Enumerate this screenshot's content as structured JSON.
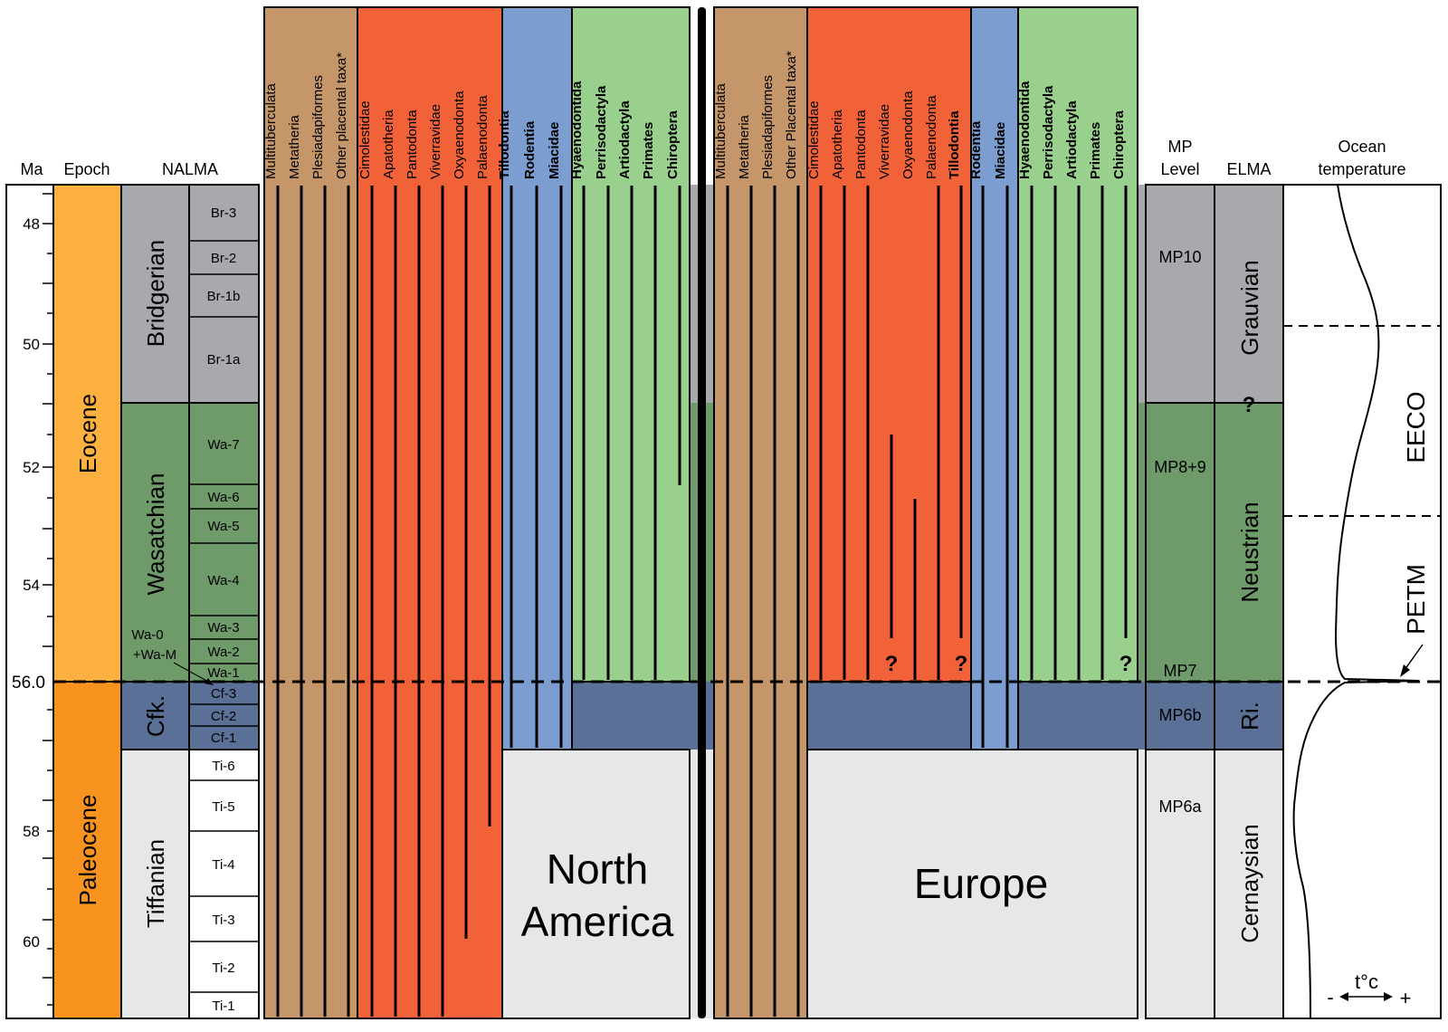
{
  "colors": {
    "paleocene": "#f7931e",
    "eocene": "#fbb040",
    "gray_zone": "#a7a9ac",
    "green_zone": "#6f9a6a",
    "blue_zone": "#5b7096",
    "light_zone": "#e6e7e8",
    "brown_group": "#c4966a",
    "red_group": "#f26239",
    "blue_group": "#7b9dd0",
    "green_group": "#9ad08e"
  },
  "headers": {
    "ma": "Ma",
    "epoch": "Epoch",
    "nalma": "NALMA",
    "mp_level_line1": "MP",
    "mp_level_line2": "Level",
    "elma": "ELMA",
    "ocean_line1": "Ocean",
    "ocean_line2": "temperature"
  },
  "ma_ticks": [
    "48",
    "50",
    "52",
    "54",
    "56.0",
    "58",
    "60"
  ],
  "epochs": [
    "Eocene",
    "Paleocene"
  ],
  "nalma": {
    "stages": [
      "Bridgerian",
      "Wasatchian",
      "Cfk.",
      "Tiffanian"
    ],
    "substages": [
      "Br-3",
      "Br-2",
      "Br-1b",
      "Br-1a",
      "Wa-7",
      "Wa-6",
      "Wa-5",
      "Wa-4",
      "Wa-3",
      "Wa-2",
      "Wa-1",
      "Cf-3",
      "Cf-2",
      "Cf-1",
      "Ti-6",
      "Ti-5",
      "Ti-4",
      "Ti-3",
      "Ti-2",
      "Ti-1"
    ],
    "wa0_line1": "Wa-0",
    "wa0_line2": "+Wa-M"
  },
  "north_america": {
    "label_line1": "North",
    "label_line2": "America",
    "taxa": [
      "Multituberculata",
      "Metatheria",
      "Plesiadapiformes",
      "Other placental taxa*",
      "Cimolestidae",
      "Apatotheria",
      "Pantodonta",
      "Viverravidae",
      "Oxyaenodonta",
      "Palaenodonta",
      "Tillodontia",
      "Rodentia",
      "Miacidae",
      "Hyaenodontida",
      "Perrisodactyla",
      "Artiodactyla",
      "Primates",
      "Chiroptera"
    ]
  },
  "europe": {
    "label": "Europe",
    "taxa": [
      "Multituberculata",
      "Metatheria",
      "Plesiadapiformes",
      "Other Placental taxa*",
      "Cimolestidae",
      "Apatotheria",
      "Pantodonta",
      "Viverravidae",
      "Oxyaenodonta",
      "Palaenodonta",
      "Tillodontia",
      "Rodentia",
      "Miacidae",
      "Hyaenodontida",
      "Perrisodactyla",
      "Artiodactyla",
      "Primates",
      "Chiroptera"
    ],
    "question_mark": "?"
  },
  "mp_levels": [
    "MP10",
    "MP8+9",
    "MP7",
    "MP6b",
    "MP6a"
  ],
  "elma": [
    "Grauvian",
    "Neustrian",
    "Ri.",
    "Cernaysian"
  ],
  "elma_question": "?",
  "ocean": {
    "eeco": "EECO",
    "petm": "PETM",
    "temp_label": "t°c",
    "minus": "-",
    "plus": "+"
  }
}
